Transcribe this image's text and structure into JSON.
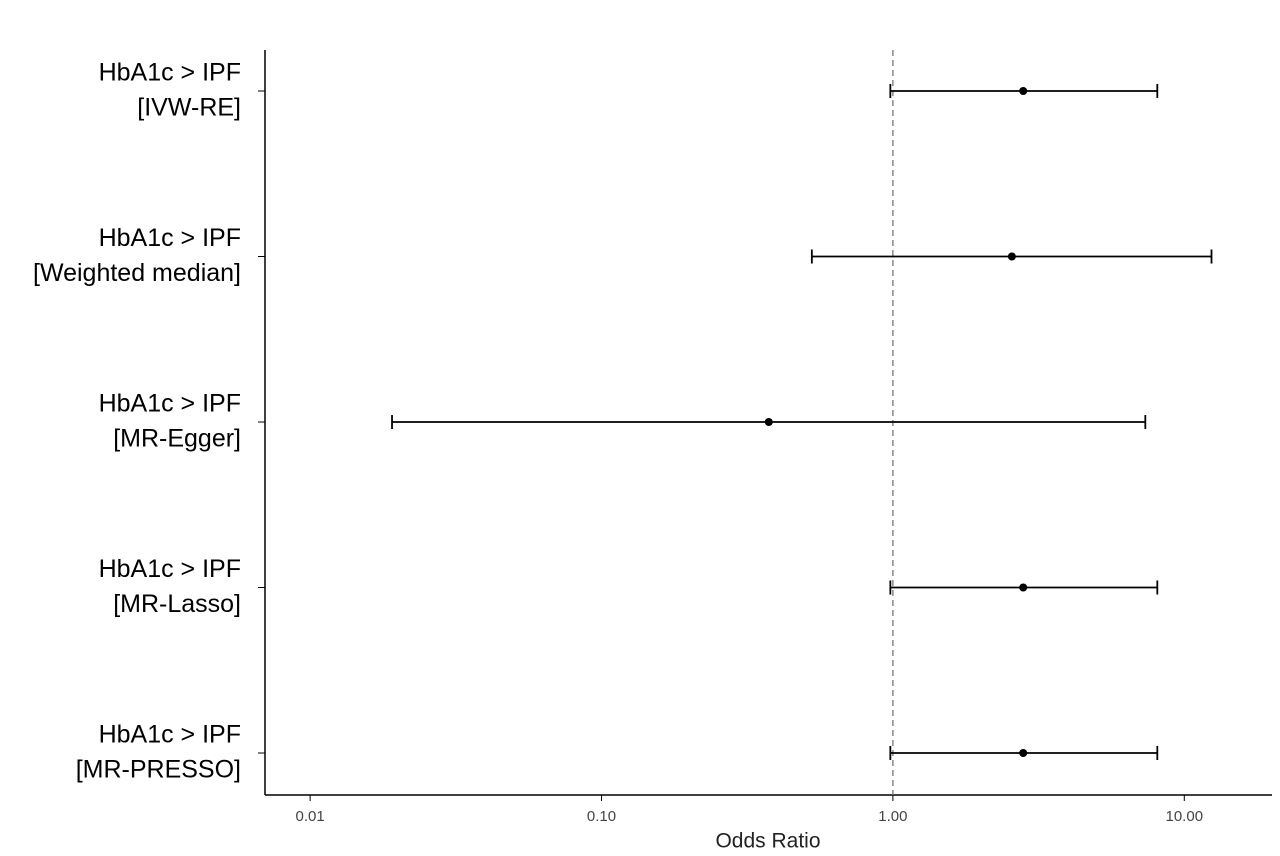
{
  "chart_data": {
    "type": "forest",
    "categories": [
      [
        "HbA1c > IPF",
        "[IVW-RE]"
      ],
      [
        "HbA1c > IPF",
        "[Weighted median]"
      ],
      [
        "HbA1c > IPF",
        "[MR-Egger]"
      ],
      [
        "HbA1c > IPF",
        "[MR-Lasso]"
      ],
      [
        "HbA1c > IPF",
        "[MR-PRESSO]"
      ]
    ],
    "values": [
      2.8,
      2.56,
      0.375,
      2.8,
      2.8
    ],
    "lower": [
      0.98,
      0.527,
      0.0191,
      0.98,
      0.98
    ],
    "upper": [
      8.08,
      12.4,
      7.35,
      8.08,
      8.08
    ],
    "color": "#000000",
    "xlabel": "Odds Ratio",
    "xscale": "log",
    "xlim": [
      0.007,
      20
    ],
    "xticks": [
      0.01,
      {
        "value": 0.1,
        "label": "0.10"
      },
      {
        "value": 1,
        "label": "1.00"
      },
      {
        "value": 10,
        "label": "10.00"
      }
    ],
    "reference_line": 1,
    "grid": false
  }
}
